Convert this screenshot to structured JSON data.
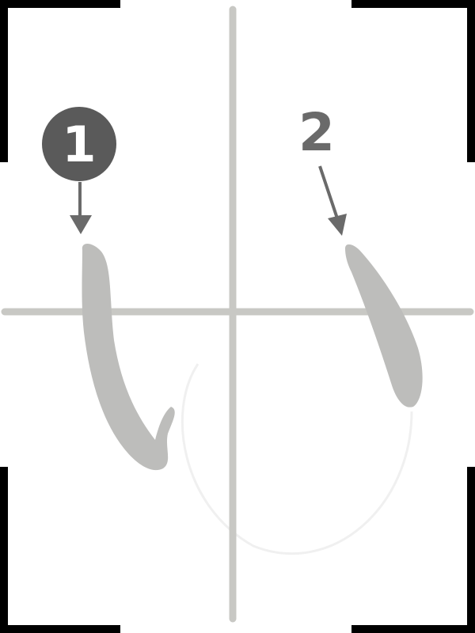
{
  "title": "",
  "steps": [
    {
      "number": "1",
      "style": "filled-circle",
      "stroke_order": 1
    },
    {
      "number": "2",
      "style": "plain",
      "stroke_order": 2
    }
  ],
  "colors": {
    "background": "#ffffff",
    "frame_corners": "#000000",
    "guide_lines": "#c8c8c4",
    "brush_stroke": "#bdbdbb",
    "step_badge": "#5a5a5a",
    "step_badge_text": "#ffffff",
    "step_plain_text": "#6a6a6a",
    "arrow": "#6a6a6a"
  }
}
